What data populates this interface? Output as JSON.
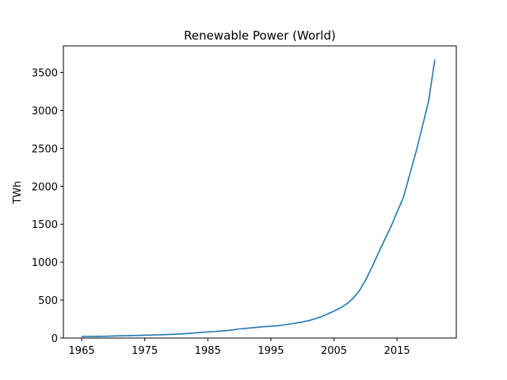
{
  "chart_data": {
    "type": "line",
    "title": "Renewable Power (World)",
    "xlabel": "",
    "ylabel": "TWh",
    "xlim": [
      1962.1,
      2024.4
    ],
    "ylim": [
      0,
      3850
    ],
    "xticks": [
      1965,
      1975,
      1985,
      1995,
      2005,
      2015
    ],
    "yticks": [
      0,
      500,
      1000,
      1500,
      2000,
      2500,
      3000,
      3500
    ],
    "grid": false,
    "line_color": "#1f77b4",
    "series": [
      {
        "x": [
          1965,
          1966,
          1967,
          1968,
          1969,
          1970,
          1971,
          1972,
          1973,
          1974,
          1975,
          1976,
          1977,
          1978,
          1979,
          1980,
          1981,
          1982,
          1983,
          1984,
          1985,
          1986,
          1987,
          1988,
          1989,
          1990,
          1991,
          1992,
          1993,
          1994,
          1995,
          1996,
          1997,
          1998,
          1999,
          2000,
          2001,
          2002,
          2003,
          2004,
          2005,
          2006,
          2007,
          2008,
          2009,
          2010,
          2011,
          2012,
          2013,
          2014,
          2015,
          2016,
          2017,
          2018,
          2019,
          2020,
          2021
        ],
        "y": [
          20,
          21,
          22,
          23,
          24,
          27,
          29,
          31,
          33,
          35,
          37,
          39,
          42,
          45,
          48,
          51,
          55,
          61,
          68,
          75,
          80,
          86,
          92,
          98,
          108,
          120,
          127,
          135,
          143,
          150,
          155,
          161,
          172,
          185,
          198,
          212,
          229,
          254,
          281,
          318,
          355,
          395,
          450,
          520,
          620,
          760,
          930,
          1110,
          1290,
          1460,
          1660,
          1850,
          2150,
          2450,
          2780,
          3120,
          3670
        ]
      }
    ]
  }
}
